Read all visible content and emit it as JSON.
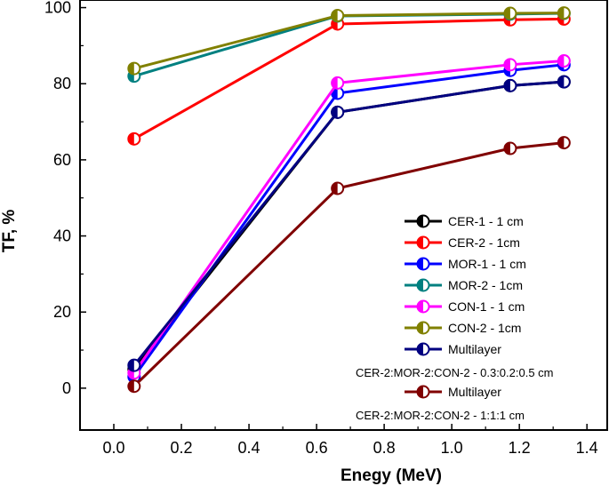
{
  "chart_data": {
    "type": "line",
    "title": "",
    "xlabel": "Enegy (MeV)",
    "ylabel": "TF, %",
    "xlim": [
      -0.1,
      1.46
    ],
    "ylim": [
      -11,
      102
    ],
    "xticks": [
      0.0,
      0.2,
      0.4,
      0.6,
      0.8,
      1.0,
      1.2,
      1.4
    ],
    "xtick_labels": [
      "0.0",
      "0.2",
      "0.4",
      "0.6",
      "0.8",
      "1.0",
      "1.2",
      "1.4"
    ],
    "yticks": [
      0,
      20,
      40,
      60,
      80,
      100
    ],
    "ytick_labels": [
      "0",
      "20",
      "40",
      "60",
      "80",
      "100"
    ],
    "x": [
      0.06,
      0.662,
      1.173,
      1.332
    ],
    "legend_position": "bottom-right",
    "series": [
      {
        "name": "CER-1 - 1 cm",
        "sublabel": "",
        "color": "#000000",
        "values": [
          5.0,
          72.5,
          79.5,
          80.5
        ]
      },
      {
        "name": "CER-2 - 1cm",
        "sublabel": "",
        "color": "#ff0000",
        "values": [
          65.5,
          95.7,
          96.8,
          97.0
        ]
      },
      {
        "name": "MOR-1 - 1 cm",
        "sublabel": "",
        "color": "#0000ff",
        "values": [
          3.0,
          77.5,
          83.5,
          85.0
        ]
      },
      {
        "name": "MOR-2 - 1cm",
        "sublabel": "",
        "color": "#008080",
        "values": [
          82.0,
          97.8,
          98.3,
          98.5
        ]
      },
      {
        "name": "CON-1 - 1 cm",
        "sublabel": "",
        "color": "#ff00ff",
        "values": [
          4.0,
          80.2,
          85.0,
          86.0
        ]
      },
      {
        "name": "CON-2 - 1cm",
        "sublabel": "",
        "color": "#808000",
        "values": [
          84.0,
          97.9,
          98.5,
          98.6
        ]
      },
      {
        "name": "Multilayer",
        "sublabel": "CER-2:MOR-2:CON-2 - 0.3:0.2:0.5 cm",
        "color": "#000080",
        "values": [
          6.0,
          72.5,
          79.5,
          80.5
        ]
      },
      {
        "name": "Multilayer",
        "sublabel": "CER-2:MOR-2:CON-2 - 1:1:1 cm",
        "color": "#800000",
        "values": [
          0.5,
          52.5,
          63.0,
          64.5
        ]
      }
    ]
  }
}
